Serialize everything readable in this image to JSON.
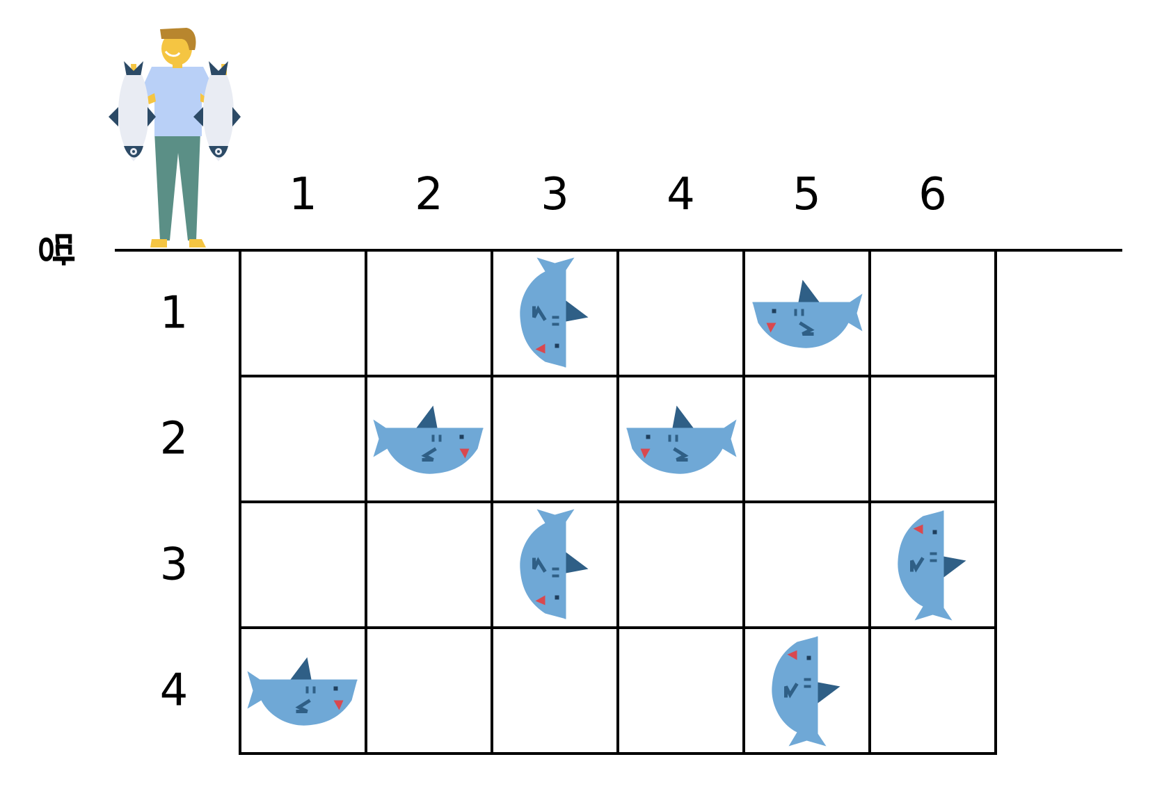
{
  "ground_label": "땅",
  "column_labels": [
    "1",
    "2",
    "3",
    "4",
    "5",
    "6"
  ],
  "row_labels": [
    "1",
    "2",
    "3",
    "4"
  ],
  "figure": {
    "name": "fisherman",
    "holding": "fish-icon"
  },
  "sharks": [
    {
      "row": 1,
      "col": 3,
      "facing": "down"
    },
    {
      "row": 1,
      "col": 5,
      "facing": "left"
    },
    {
      "row": 2,
      "col": 2,
      "facing": "right"
    },
    {
      "row": 2,
      "col": 4,
      "facing": "left"
    },
    {
      "row": 3,
      "col": 3,
      "facing": "down"
    },
    {
      "row": 3,
      "col": 6,
      "facing": "up"
    },
    {
      "row": 4,
      "col": 1,
      "facing": "right"
    },
    {
      "row": 4,
      "col": 5,
      "facing": "up"
    }
  ],
  "colors": {
    "shark_body": "#6fa8d6",
    "shark_fin": "#2f5f86",
    "shark_mouth": "#d9484f",
    "grid_line": "#000000",
    "shirt": "#b9d0f7",
    "pants": "#5b8f86",
    "skin": "#f5c542",
    "hair": "#b8862e",
    "fish_body": "#e9ecf3",
    "fish_dark": "#2c4a66"
  }
}
